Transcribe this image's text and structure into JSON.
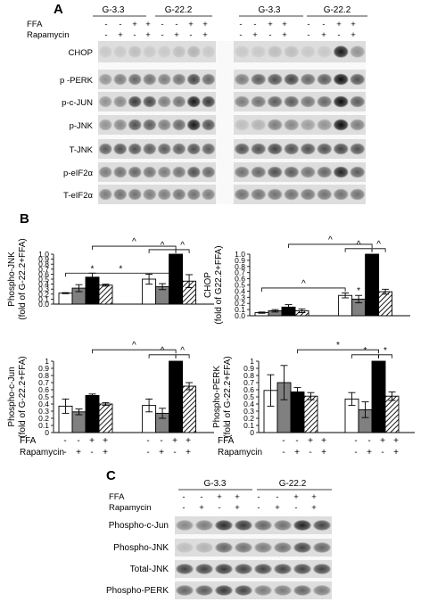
{
  "panels": {
    "a": "A",
    "b": "B",
    "c": "C"
  },
  "treatment_labels": {
    "ffa": "FFA",
    "rapamycin": "Rapamycin"
  },
  "groups": {
    "g1": "G-3.3",
    "g2": "G-22.2"
  },
  "treatment_signs": {
    "ffa": [
      "-",
      "-",
      "+",
      "+"
    ],
    "rapamycin": [
      "-",
      "+",
      "-",
      "+"
    ]
  },
  "blot_rows_a": [
    "CHOP",
    "p -PERK",
    "p-c-JUN",
    "p-JNK",
    "T-JNK",
    "p-eIF2α",
    "T-eIF2α"
  ],
  "blot_rows_c": [
    "Phospho-c-Jun",
    "Phospho-JNK",
    "Total-JNK",
    "Phospho-PERK"
  ],
  "significance_marks": {
    "caret": "^",
    "star": "*"
  },
  "legend_colors": {
    "ctrl": "#ffffff",
    "rapa": "#808080",
    "ffa": "#000000",
    "ffa_rapa": "hatched"
  },
  "chart_data": [
    {
      "type": "bar",
      "ylabel_line1": "Phospho-JNK",
      "ylabel_line2": "(fold of G-22.2+FFA)",
      "yticks": [
        "0.0",
        "0.1",
        "0.2",
        "0.3",
        "0.4",
        "0.5",
        "0.6",
        "0.7",
        "0.8",
        "0.9",
        "1.0"
      ],
      "ylim": [
        0,
        1.0
      ],
      "groups": [
        "G-3.3",
        "G-22.2"
      ],
      "values": [
        [
          0.22,
          0.32,
          0.54,
          0.38
        ],
        [
          0.5,
          0.35,
          1.0,
          0.46
        ]
      ],
      "errors": [
        [
          0.01,
          0.07,
          0.08,
          0.02
        ],
        [
          0.1,
          0.06,
          0.0,
          0.13
        ]
      ]
    },
    {
      "type": "bar",
      "ylabel_line1": "CHOP",
      "ylabel_line2": "(fold of G22.2+FFA)",
      "yticks": [
        "0.0",
        "0.1",
        "0.2",
        "0.3",
        "0.4",
        "0.5",
        "0.6",
        "0.7",
        "0.8",
        "0.9",
        "1.0"
      ],
      "ylim": [
        0,
        1.0
      ],
      "groups": [
        "G-3.3",
        "G-22.2"
      ],
      "values": [
        [
          0.05,
          0.08,
          0.14,
          0.08
        ],
        [
          0.33,
          0.27,
          1.0,
          0.39
        ]
      ],
      "errors": [
        [
          0.01,
          0.02,
          0.04,
          0.03
        ],
        [
          0.04,
          0.06,
          0.0,
          0.04
        ]
      ]
    },
    {
      "type": "bar",
      "ylabel_line1": "Phospho-c-Jun",
      "ylabel_line2": "(fold of G-22.2+FFA)",
      "yticks": [
        "0",
        "0.1",
        "0.2",
        "0.3",
        "0.4",
        "0.5",
        "0.6",
        "0.7",
        "0.8",
        "0.9",
        "1"
      ],
      "ylim": [
        0,
        1.0
      ],
      "groups": [
        "G-3.3",
        "G-22.2"
      ],
      "values": [
        [
          0.37,
          0.29,
          0.52,
          0.4
        ],
        [
          0.38,
          0.27,
          1.0,
          0.65
        ]
      ],
      "errors": [
        [
          0.1,
          0.04,
          0.02,
          0.02
        ],
        [
          0.09,
          0.07,
          0.0,
          0.05
        ]
      ]
    },
    {
      "type": "bar",
      "ylabel_line1": "Phospho-PERK",
      "ylabel_line2": "(fold of G-22.2+FFA)",
      "yticks": [
        "0",
        "0.1",
        "0.2",
        "0.3",
        "0.4",
        "0.5",
        "0.6",
        "0.7",
        "0.8",
        "0.9",
        "1"
      ],
      "ylim": [
        0,
        1.0
      ],
      "groups": [
        "G-3.3",
        "G-22.2"
      ],
      "values": [
        [
          0.59,
          0.7,
          0.57,
          0.51
        ],
        [
          0.47,
          0.32,
          1.0,
          0.51
        ]
      ],
      "errors": [
        [
          0.22,
          0.24,
          0.06,
          0.05
        ],
        [
          0.09,
          0.11,
          0.0,
          0.06
        ]
      ]
    }
  ]
}
